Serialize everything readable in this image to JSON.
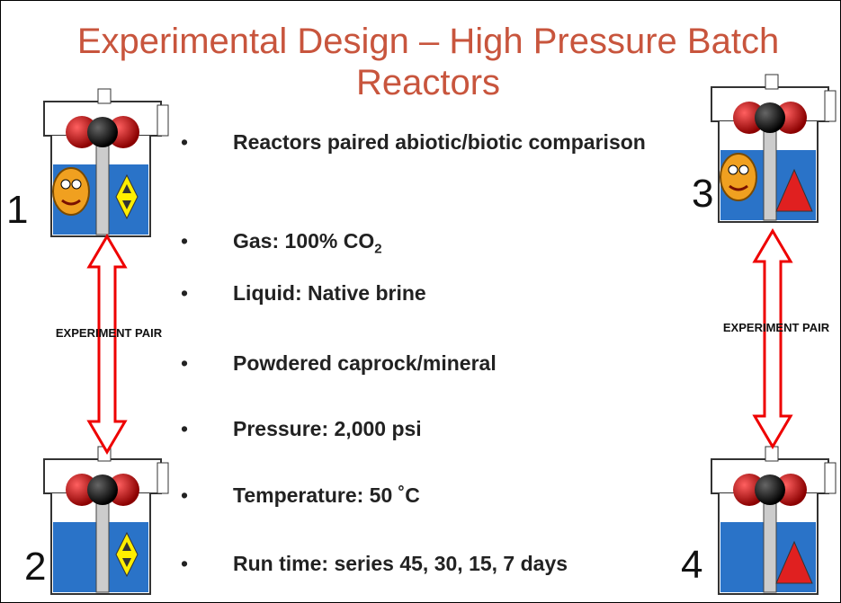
{
  "title": "Experimental Design – High Pressure Batch Reactors",
  "bullets": [
    {
      "text": "Reactors paired abiotic/biotic comparison"
    },
    {
      "text": "Gas: 100% CO",
      "sub": "2"
    },
    {
      "text": "Liquid: Native brine"
    },
    {
      "text": "Powdered caprock/mineral"
    },
    {
      "text": "Pressure: 2,000 psi"
    },
    {
      "text": "Temperature: 50 ˚C"
    },
    {
      "text": "Run time: series 45, 30, 15, 7 days"
    }
  ],
  "reactors": [
    {
      "label": "1"
    },
    {
      "label": "2"
    },
    {
      "label": "3"
    },
    {
      "label": "4"
    }
  ],
  "pairs": [
    {
      "label": "EXPERIMENT PAIR"
    },
    {
      "label": "EXPERIMENT PAIR"
    }
  ]
}
